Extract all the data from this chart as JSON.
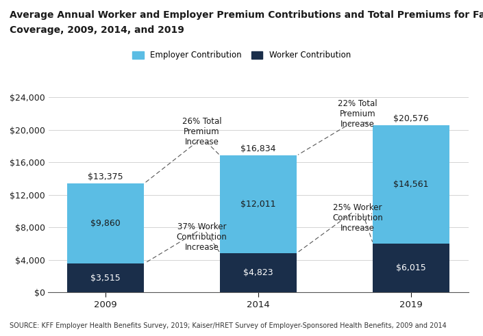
{
  "years": [
    "2009",
    "2014",
    "2019"
  ],
  "worker_contributions": [
    3515,
    4823,
    6015
  ],
  "employer_contributions": [
    9860,
    12011,
    14561
  ],
  "totals": [
    13375,
    16834,
    20576
  ],
  "worker_color": "#1a2e4a",
  "employer_color": "#5bbde4",
  "bar_width": 0.5,
  "ylim": [
    0,
    24000
  ],
  "yticks": [
    0,
    4000,
    8000,
    12000,
    16000,
    20000,
    24000
  ],
  "title_line1": "Average Annual Worker and Employer Premium Contributions and Total Premiums for Family",
  "title_line2": "Coverage, 2009, 2014, and 2019",
  "source_text": "SOURCE: KFF Employer Health Benefits Survey, 2019; Kaiser/HRET Survey of Employer-Sponsored Health Benefits, 2009 and 2014",
  "background_color": "#ffffff",
  "text_color": "#1a1a1a",
  "grid_color": "#cccccc"
}
